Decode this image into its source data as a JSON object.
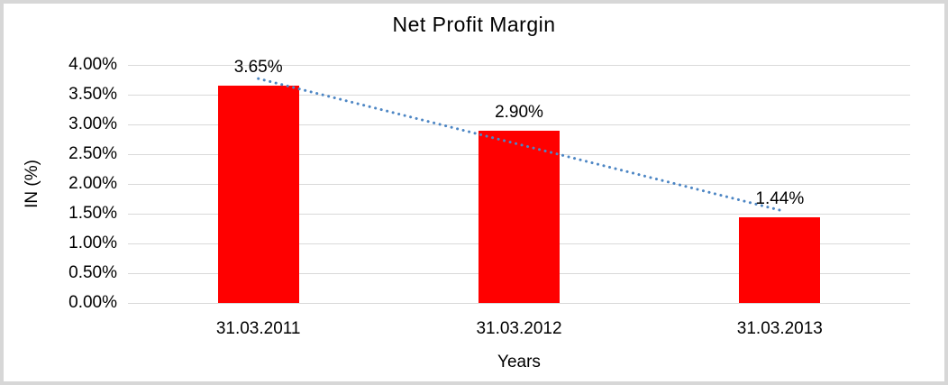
{
  "frame": {
    "border_color": "#d7d7d7",
    "background": "#ffffff"
  },
  "chart_data": {
    "type": "bar",
    "title": "Net Profit Margin",
    "xlabel": "Years",
    "ylabel": "IN (%)",
    "categories": [
      "31.03.2011",
      "31.03.2012",
      "31.03.2013"
    ],
    "values": [
      3.65,
      2.9,
      1.44
    ],
    "data_labels": [
      "3.65%",
      "2.90%",
      "1.44%"
    ],
    "bar_color": "#ff0000",
    "ylim": [
      0,
      4
    ],
    "ytick_step": 0.5,
    "ytick_labels": [
      "0.00%",
      "0.50%",
      "1.00%",
      "1.50%",
      "2.00%",
      "2.50%",
      "3.00%",
      "3.50%",
      "4.00%"
    ],
    "grid": true,
    "gridline_color": "#d9d9d9",
    "legend": "none",
    "trendline": {
      "type": "linear",
      "style": "dotted",
      "color": "#4d86c4",
      "start_value": 3.77,
      "end_value": 1.56
    }
  }
}
